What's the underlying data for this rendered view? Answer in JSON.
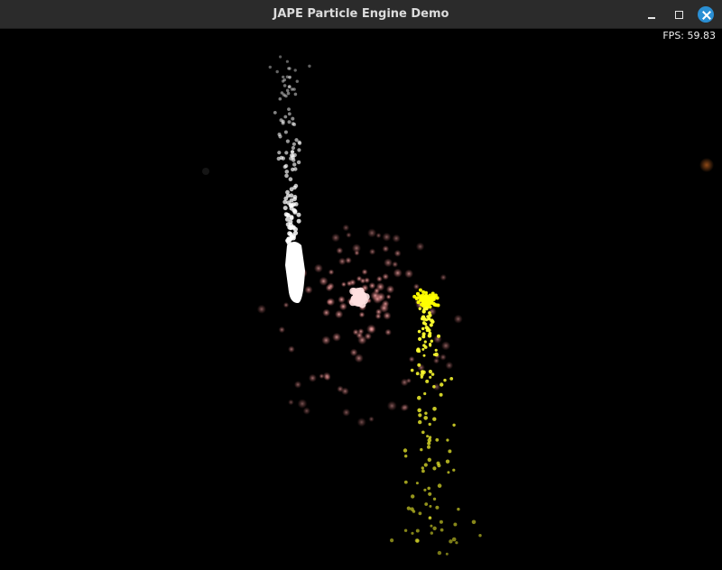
{
  "window": {
    "title": "JAPE Particle Engine Demo"
  },
  "hud": {
    "fps_text": "FPS: 59.83"
  },
  "colors": {
    "background": "#000000",
    "titlebar": "#2b2b2b",
    "close_button": "#2a8fd4",
    "white_particles": "#ffffff",
    "pink_particles": "#e88a8a",
    "yellow_particles": "#ffff00"
  },
  "icons": {
    "minimize": "minimize-icon",
    "maximize": "maximize-icon",
    "close": "close-icon"
  }
}
